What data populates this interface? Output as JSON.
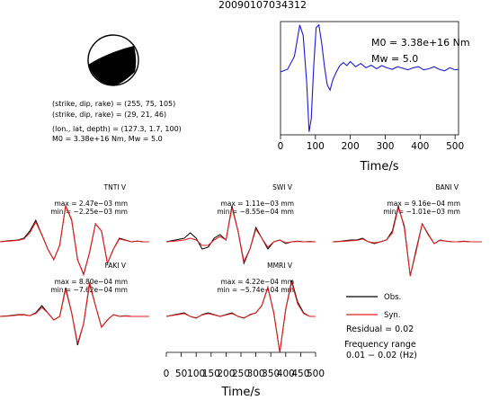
{
  "title": "20090107034312",
  "mechanism_lines": [
    "(strike, dip, rake) = (255, 75, 105)",
    "(strike, dip, rake) = (29, 21, 46)",
    "(lon., lat, depth) = (127.3, 1.7, 100)",
    "M0 = 3.38e+16 Nm, Mw = 5.0"
  ],
  "stf": {
    "m0_label": "M0 = 3.38e+16 Nm",
    "mw_label": "Mw = 5.0",
    "x_ticks": [
      "0",
      "100",
      "200",
      "300",
      "400",
      "500"
    ],
    "xlabel": "Time/s"
  },
  "stations": [
    {
      "name": "TNTI V",
      "max": "max = 2.47e−03 mm",
      "min": "min = −2.25e−03 mm"
    },
    {
      "name": "SWI V",
      "max": "max = 1.11e−03 mm",
      "min": "min = −8.55e−04 mm"
    },
    {
      "name": "BANI V",
      "max": "max = 9.16e−04 mm",
      "min": "min = −1.01e−03 mm"
    },
    {
      "name": "FAKI V",
      "max": "max = 8.80e−04 mm",
      "min": "min = −7.62e−04 mm"
    },
    {
      "name": "MMRI V",
      "max": "max = 4.22e−04 mm",
      "min": "min = −5.74e−04 mm"
    }
  ],
  "wave_axis": {
    "x_ticks": [
      "0",
      "50",
      "100",
      "150",
      "200",
      "250",
      "300",
      "350",
      "400",
      "450",
      "500"
    ],
    "xlabel": "Time/s"
  },
  "legend": {
    "obs": "Obs.",
    "syn": "Syn.",
    "residual": "Residual = 0.02",
    "freq_title": "Frequency range",
    "freq_value": "0.01 − 0.02 (Hz)"
  },
  "colors": {
    "stf": "#1a1ad9",
    "obs": "#000000",
    "syn": "#e02020",
    "beachball": "#000000"
  },
  "chart_data": [
    {
      "type": "line",
      "title": "",
      "xlabel": "Time/s",
      "ylabel": "",
      "xlim": [
        0,
        510
      ],
      "x_ticks": [
        0,
        100,
        200,
        300,
        400,
        500
      ],
      "grid": false,
      "series": [
        {
          "x": [
            0,
            20,
            40,
            55,
            65,
            75,
            82,
            88,
            95,
            102,
            110,
            118,
            126,
            134,
            142,
            150,
            160,
            170,
            180,
            190,
            200,
            215,
            230,
            245,
            260,
            275,
            290,
            305,
            320,
            335,
            350,
            365,
            380,
            395,
            410,
            425,
            440,
            455,
            470,
            485,
            500,
            510
          ],
          "y": [
            0.0,
            0.05,
            0.3,
            0.9,
            0.7,
            -0.2,
            -1.15,
            -0.9,
            0.1,
            0.85,
            0.9,
            0.55,
            0.1,
            -0.25,
            -0.35,
            -0.15,
            0.0,
            0.12,
            0.18,
            0.12,
            0.2,
            0.1,
            0.16,
            0.08,
            0.13,
            0.06,
            0.12,
            0.08,
            0.05,
            0.1,
            0.07,
            0.04,
            0.08,
            0.1,
            0.04,
            0.06,
            0.1,
            0.05,
            0.02,
            0.08,
            0.04,
            0.05
          ]
        }
      ]
    },
    {
      "type": "line",
      "title": "",
      "xlabel": "Time/s",
      "ylabel": "",
      "xlim": [
        0,
        500
      ],
      "x_ticks": [
        0,
        50,
        100,
        150,
        200,
        250,
        300,
        350,
        400,
        450,
        500
      ],
      "series": [
        {
          "name": "Obs.",
          "panel": "TNTI V",
          "x": [
            0,
            30,
            60,
            80,
            100,
            120,
            140,
            160,
            180,
            200,
            220,
            240,
            260,
            280,
            300,
            320,
            340,
            360,
            380,
            400,
            420,
            440,
            460,
            480,
            500
          ],
          "y": [
            0.0,
            0.03,
            0.05,
            0.1,
            0.3,
            0.6,
            0.2,
            -0.2,
            -0.5,
            -0.1,
            1.0,
            0.6,
            -0.5,
            -0.9,
            -0.3,
            0.5,
            0.3,
            -0.6,
            -0.2,
            0.1,
            0.05,
            0.0,
            0.02,
            0.0,
            0.0
          ]
        },
        {
          "name": "Syn.",
          "panel": "TNTI V",
          "x": [
            0,
            30,
            60,
            80,
            100,
            120,
            140,
            160,
            180,
            200,
            220,
            240,
            260,
            280,
            300,
            320,
            340,
            360,
            380,
            400,
            420,
            440,
            460,
            480,
            500
          ],
          "y": [
            0.0,
            0.02,
            0.04,
            0.08,
            0.25,
            0.55,
            0.2,
            -0.2,
            -0.5,
            -0.1,
            1.0,
            0.62,
            -0.5,
            -0.92,
            -0.3,
            0.5,
            0.3,
            -0.6,
            -0.2,
            0.08,
            0.04,
            0.0,
            0.02,
            0.0,
            0.0
          ]
        },
        {
          "name": "Obs.",
          "panel": "SWI V",
          "x": [
            0,
            30,
            60,
            80,
            100,
            120,
            140,
            160,
            180,
            200,
            220,
            240,
            260,
            280,
            300,
            320,
            340,
            360,
            380,
            400,
            420,
            440,
            460,
            480,
            500
          ],
          "y": [
            0.0,
            0.05,
            0.1,
            0.25,
            0.1,
            -0.2,
            -0.15,
            0.1,
            0.2,
            0.05,
            1.0,
            0.3,
            -0.6,
            -0.2,
            0.4,
            0.1,
            -0.2,
            0.0,
            0.05,
            -0.05,
            0.0,
            0.02,
            0.0,
            0.01,
            0.0
          ]
        },
        {
          "name": "Syn.",
          "panel": "SWI V",
          "x": [
            0,
            30,
            60,
            80,
            100,
            120,
            140,
            160,
            180,
            200,
            220,
            240,
            260,
            280,
            300,
            320,
            340,
            360,
            380,
            400,
            420,
            440,
            460,
            480,
            500
          ],
          "y": [
            0.0,
            0.02,
            0.05,
            0.1,
            0.05,
            -0.1,
            -0.1,
            0.05,
            0.15,
            0.05,
            0.95,
            0.3,
            -0.55,
            -0.2,
            0.35,
            0.1,
            -0.15,
            0.0,
            0.05,
            -0.03,
            0.0,
            0.01,
            0.0,
            0.0,
            0.0
          ]
        },
        {
          "name": "Obs.",
          "panel": "BANI V",
          "x": [
            0,
            30,
            60,
            80,
            100,
            120,
            140,
            160,
            180,
            200,
            220,
            240,
            260,
            280,
            300,
            320,
            340,
            360,
            380,
            400,
            420,
            440,
            460,
            480,
            500
          ],
          "y": [
            0.0,
            0.02,
            0.05,
            0.05,
            0.1,
            0.0,
            -0.05,
            0.0,
            0.05,
            0.3,
            1.0,
            0.4,
            -0.95,
            -0.2,
            0.5,
            0.2,
            -0.05,
            0.05,
            0.02,
            0.0,
            0.0,
            0.02,
            0.0,
            0.0,
            0.0
          ]
        },
        {
          "name": "Syn.",
          "panel": "BANI V",
          "x": [
            0,
            30,
            60,
            80,
            100,
            120,
            140,
            160,
            180,
            200,
            220,
            240,
            260,
            280,
            300,
            320,
            340,
            360,
            380,
            400,
            420,
            440,
            460,
            480,
            500
          ],
          "y": [
            0.0,
            0.01,
            0.03,
            0.04,
            0.08,
            0.0,
            -0.03,
            0.0,
            0.05,
            0.25,
            0.95,
            0.45,
            -0.95,
            -0.25,
            0.5,
            0.22,
            -0.05,
            0.04,
            0.02,
            0.0,
            0.0,
            0.01,
            0.0,
            0.0,
            0.0
          ]
        },
        {
          "name": "Obs.",
          "panel": "FAKI V",
          "x": [
            0,
            30,
            60,
            80,
            100,
            120,
            140,
            160,
            180,
            200,
            220,
            240,
            260,
            280,
            300,
            320,
            340,
            360,
            380,
            400,
            420,
            440,
            460,
            480,
            500
          ],
          "y": [
            0.0,
            0.02,
            0.05,
            0.05,
            0.02,
            0.1,
            0.3,
            0.1,
            -0.1,
            0.0,
            0.8,
            0.1,
            -0.8,
            -0.2,
            0.9,
            0.3,
            -0.3,
            -0.1,
            0.05,
            0.0,
            0.02,
            0.0,
            0.0,
            0.0,
            0.0
          ]
        },
        {
          "name": "Syn.",
          "panel": "FAKI V",
          "x": [
            0,
            30,
            60,
            80,
            100,
            120,
            140,
            160,
            180,
            200,
            220,
            240,
            260,
            280,
            300,
            320,
            340,
            360,
            380,
            400,
            420,
            440,
            460,
            480,
            500
          ],
          "y": [
            0.0,
            0.01,
            0.04,
            0.04,
            0.02,
            0.08,
            0.25,
            0.1,
            -0.1,
            0.0,
            0.75,
            0.1,
            -0.75,
            -0.2,
            0.95,
            0.3,
            -0.3,
            -0.1,
            0.05,
            0.0,
            0.01,
            0.0,
            0.0,
            0.0,
            0.0
          ]
        },
        {
          "name": "Obs.",
          "panel": "MMRI V",
          "x": [
            0,
            30,
            60,
            80,
            100,
            120,
            140,
            160,
            180,
            200,
            220,
            240,
            260,
            280,
            300,
            320,
            340,
            360,
            380,
            400,
            420,
            440,
            460,
            480,
            500
          ],
          "y": [
            0.0,
            0.05,
            0.1,
            0.0,
            -0.05,
            0.05,
            0.1,
            0.05,
            0.0,
            0.05,
            0.1,
            0.0,
            -0.05,
            0.05,
            0.1,
            0.3,
            0.8,
            0.1,
            -1.0,
            0.2,
            1.0,
            0.4,
            0.1,
            0.0,
            0.0
          ]
        },
        {
          "name": "Syn.",
          "panel": "MMRI V",
          "x": [
            0,
            30,
            60,
            80,
            100,
            120,
            140,
            160,
            180,
            200,
            220,
            240,
            260,
            280,
            300,
            320,
            340,
            360,
            380,
            400,
            420,
            440,
            460,
            480,
            500
          ],
          "y": [
            0.0,
            0.04,
            0.08,
            0.0,
            -0.04,
            0.04,
            0.08,
            0.04,
            0.0,
            0.04,
            0.08,
            0.0,
            -0.04,
            0.04,
            0.1,
            0.3,
            0.82,
            0.1,
            -1.0,
            0.2,
            0.95,
            0.35,
            0.08,
            0.0,
            0.0
          ]
        }
      ]
    }
  ]
}
